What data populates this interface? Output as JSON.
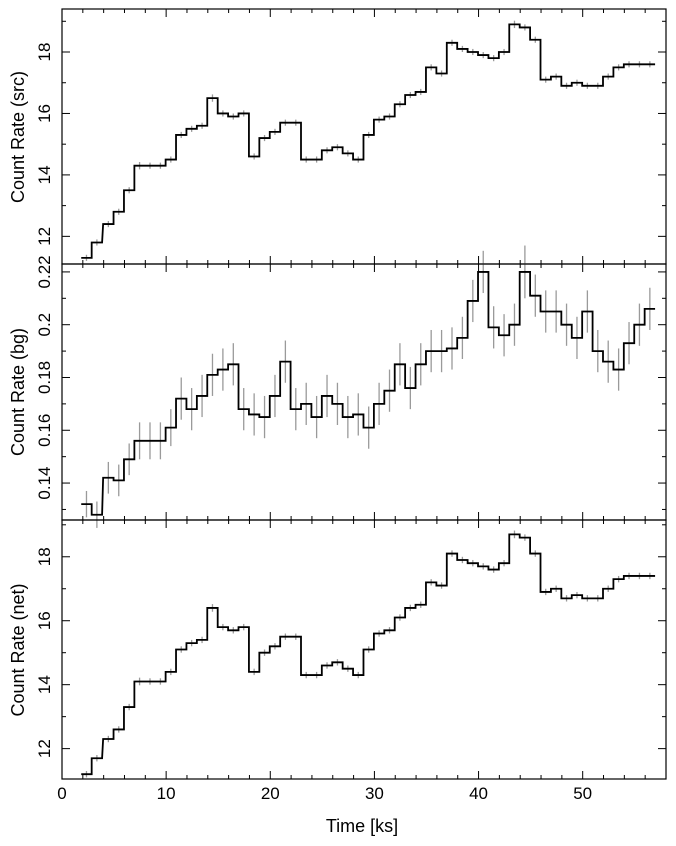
{
  "colors": {
    "step": "#000000",
    "error": "#9a9a9a",
    "frame": "#000000"
  },
  "chart_data": [
    {
      "type": "line",
      "panel": "src",
      "ylabel": "Count Rate (src)",
      "xlim": [
        0,
        58
      ],
      "ylim": [
        11.1,
        19.4
      ],
      "ytick_values": [
        12,
        14,
        16,
        18
      ],
      "ytick_labels": [
        "12",
        "14",
        "16",
        "18"
      ],
      "x": [
        2.35,
        3.35,
        4.45,
        5.45,
        6.45,
        7.45,
        8.45,
        9.45,
        10.45,
        11.45,
        12.45,
        13.45,
        14.45,
        15.45,
        16.45,
        17.45,
        18.45,
        19.45,
        20.45,
        21.45,
        22.45,
        23.45,
        24.45,
        25.45,
        26.45,
        27.45,
        28.45,
        29.45,
        30.45,
        31.45,
        32.45,
        33.45,
        34.45,
        35.45,
        36.45,
        37.45,
        38.45,
        39.45,
        40.45,
        41.45,
        42.45,
        43.45,
        44.45,
        45.45,
        46.45,
        47.45,
        48.45,
        49.45,
        50.45,
        51.45,
        52.45,
        53.45,
        54.45,
        55.45,
        56.45
      ],
      "y": [
        11.3,
        11.8,
        12.4,
        12.8,
        13.5,
        14.3,
        14.3,
        14.3,
        14.5,
        15.3,
        15.5,
        15.6,
        16.5,
        16.0,
        15.9,
        16.0,
        14.6,
        15.2,
        15.4,
        15.7,
        15.7,
        14.5,
        14.5,
        14.8,
        14.9,
        14.7,
        14.5,
        15.3,
        15.8,
        15.9,
        16.3,
        16.6,
        16.7,
        17.5,
        17.3,
        18.3,
        18.1,
        18.0,
        17.9,
        17.8,
        18.0,
        18.9,
        18.8,
        18.4,
        17.1,
        17.2,
        16.9,
        17.0,
        16.9,
        16.9,
        17.2,
        17.5,
        17.6,
        17.6,
        17.6
      ],
      "err": [
        0.1,
        0.1,
        0.1,
        0.1,
        0.1,
        0.12,
        0.1,
        0.1,
        0.1,
        0.1,
        0.1,
        0.1,
        0.12,
        0.1,
        0.1,
        0.1,
        0.1,
        0.1,
        0.1,
        0.1,
        0.1,
        0.1,
        0.1,
        0.1,
        0.1,
        0.1,
        0.1,
        0.1,
        0.1,
        0.1,
        0.1,
        0.1,
        0.1,
        0.1,
        0.1,
        0.1,
        0.1,
        0.1,
        0.1,
        0.1,
        0.1,
        0.12,
        0.1,
        0.1,
        0.1,
        0.1,
        0.1,
        0.1,
        0.1,
        0.1,
        0.1,
        0.1,
        0.1,
        0.1,
        0.1
      ]
    },
    {
      "type": "line",
      "panel": "bg",
      "ylabel": "Count Rate (bg)",
      "xlim": [
        0,
        58
      ],
      "ylim": [
        0.126,
        0.223
      ],
      "ytick_values": [
        0.14,
        0.16,
        0.18,
        0.2,
        0.22
      ],
      "ytick_labels": [
        "0.14",
        "0.16",
        "0.18",
        "0.2",
        "0.22"
      ],
      "x": [
        2.35,
        3.35,
        4.45,
        5.45,
        6.45,
        7.45,
        8.45,
        9.45,
        10.45,
        11.45,
        12.45,
        13.45,
        14.45,
        15.45,
        16.45,
        17.45,
        18.45,
        19.45,
        20.45,
        21.45,
        22.45,
        23.45,
        24.45,
        25.45,
        26.45,
        27.45,
        28.45,
        29.45,
        30.45,
        31.45,
        32.45,
        33.45,
        34.45,
        35.45,
        36.45,
        37.45,
        38.45,
        39.45,
        40.45,
        41.45,
        42.45,
        43.45,
        44.45,
        45.45,
        46.45,
        47.45,
        48.45,
        49.45,
        50.45,
        51.45,
        52.45,
        53.45,
        54.45,
        55.45,
        56.45
      ],
      "y": [
        0.132,
        0.128,
        0.142,
        0.141,
        0.149,
        0.156,
        0.156,
        0.156,
        0.161,
        0.172,
        0.168,
        0.173,
        0.181,
        0.183,
        0.185,
        0.168,
        0.166,
        0.165,
        0.173,
        0.186,
        0.168,
        0.17,
        0.165,
        0.173,
        0.17,
        0.165,
        0.166,
        0.161,
        0.17,
        0.175,
        0.185,
        0.176,
        0.185,
        0.19,
        0.19,
        0.191,
        0.195,
        0.209,
        0.22,
        0.199,
        0.196,
        0.2,
        0.22,
        0.211,
        0.205,
        0.205,
        0.2,
        0.195,
        0.205,
        0.19,
        0.186,
        0.183,
        0.193,
        0.2,
        0.206
      ],
      "err": [
        0.005,
        0.005,
        0.006,
        0.006,
        0.006,
        0.007,
        0.007,
        0.007,
        0.007,
        0.008,
        0.008,
        0.008,
        0.008,
        0.008,
        0.008,
        0.008,
        0.008,
        0.008,
        0.008,
        0.008,
        0.008,
        0.008,
        0.008,
        0.008,
        0.008,
        0.008,
        0.008,
        0.008,
        0.008,
        0.008,
        0.008,
        0.008,
        0.008,
        0.008,
        0.008,
        0.008,
        0.008,
        0.008,
        0.008,
        0.008,
        0.008,
        0.008,
        0.01,
        0.008,
        0.008,
        0.008,
        0.008,
        0.008,
        0.008,
        0.008,
        0.008,
        0.008,
        0.008,
        0.008,
        0.008
      ]
    },
    {
      "type": "line",
      "panel": "net",
      "ylabel": "Count Rate (net)",
      "xlabel": "Time [ks]",
      "xlim": [
        0,
        58
      ],
      "ylim": [
        11.05,
        19.15
      ],
      "xtick_values": [
        0,
        10,
        20,
        30,
        40,
        50
      ],
      "xtick_labels": [
        "0",
        "10",
        "20",
        "30",
        "40",
        "50"
      ],
      "ytick_values": [
        12,
        14,
        16,
        18
      ],
      "ytick_labels": [
        "12",
        "14",
        "16",
        "18"
      ],
      "x": [
        2.35,
        3.35,
        4.45,
        5.45,
        6.45,
        7.45,
        8.45,
        9.45,
        10.45,
        11.45,
        12.45,
        13.45,
        14.45,
        15.45,
        16.45,
        17.45,
        18.45,
        19.45,
        20.45,
        21.45,
        22.45,
        23.45,
        24.45,
        25.45,
        26.45,
        27.45,
        28.45,
        29.45,
        30.45,
        31.45,
        32.45,
        33.45,
        34.45,
        35.45,
        36.45,
        37.45,
        38.45,
        39.45,
        40.45,
        41.45,
        42.45,
        43.45,
        44.45,
        45.45,
        46.45,
        47.45,
        48.45,
        49.45,
        50.45,
        51.45,
        52.45,
        53.45,
        54.45,
        55.45,
        56.45
      ],
      "y": [
        11.2,
        11.7,
        12.3,
        12.6,
        13.3,
        14.1,
        14.1,
        14.1,
        14.4,
        15.1,
        15.3,
        15.4,
        16.4,
        15.8,
        15.7,
        15.8,
        14.4,
        15.0,
        15.2,
        15.5,
        15.5,
        14.3,
        14.3,
        14.6,
        14.7,
        14.5,
        14.3,
        15.1,
        15.6,
        15.7,
        16.1,
        16.4,
        16.5,
        17.2,
        17.1,
        18.1,
        17.9,
        17.8,
        17.7,
        17.6,
        17.8,
        18.7,
        18.6,
        18.1,
        16.9,
        17.0,
        16.7,
        16.8,
        16.7,
        16.7,
        17.0,
        17.3,
        17.4,
        17.4,
        17.4
      ],
      "err": [
        0.1,
        0.1,
        0.1,
        0.1,
        0.1,
        0.12,
        0.1,
        0.1,
        0.1,
        0.1,
        0.1,
        0.1,
        0.12,
        0.1,
        0.1,
        0.1,
        0.1,
        0.1,
        0.1,
        0.1,
        0.1,
        0.1,
        0.1,
        0.1,
        0.1,
        0.1,
        0.1,
        0.1,
        0.1,
        0.1,
        0.1,
        0.1,
        0.1,
        0.1,
        0.1,
        0.1,
        0.1,
        0.1,
        0.1,
        0.1,
        0.1,
        0.12,
        0.1,
        0.1,
        0.1,
        0.1,
        0.1,
        0.1,
        0.1,
        0.1,
        0.1,
        0.1,
        0.1,
        0.1,
        0.1
      ]
    }
  ]
}
